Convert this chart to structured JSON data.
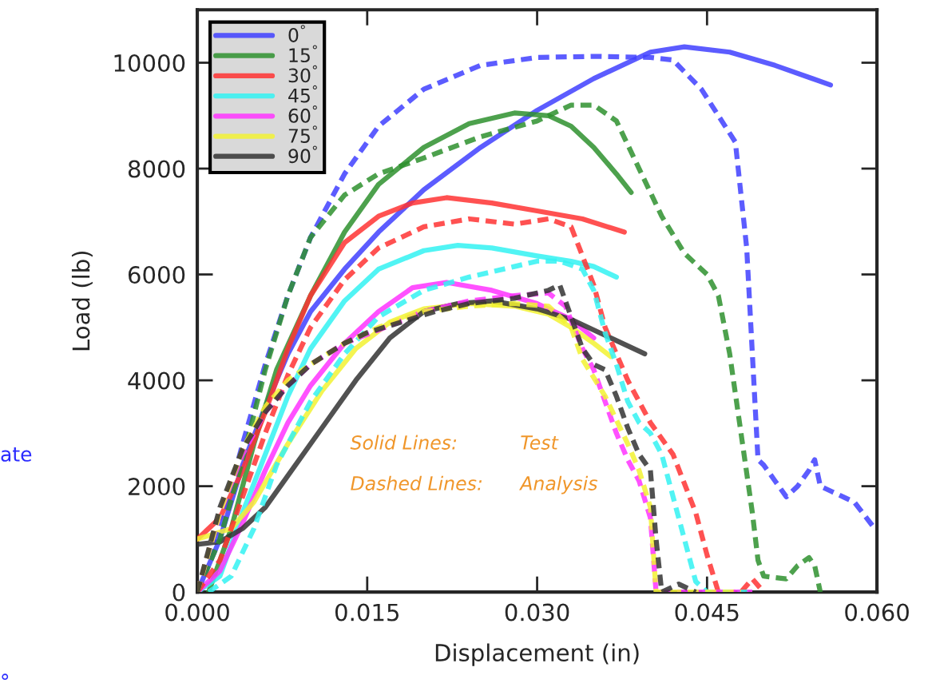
{
  "chart_data": {
    "type": "line",
    "xlabel": "Displacement (in)",
    "ylabel": "Load (lb)",
    "xlim": [
      0,
      0.06
    ],
    "xticks": [
      {
        "value": 0,
        "label": "0.000"
      },
      0.015,
      {
        "value": 0.03,
        "label": "0.030"
      },
      0.045,
      {
        "value": 0.06,
        "label": "0.060"
      }
    ],
    "ylim": [
      0,
      11000
    ],
    "yticks": [
      0,
      2000,
      4000,
      6000,
      8000,
      10000
    ],
    "grid": false,
    "legend": "top left",
    "annotations": [
      "Solid Lines:",
      "Test",
      "Dashed Lines:",
      "Analysis",
      "ate",
      "°"
    ],
    "series": [
      {
        "name": "0$^{°}$",
        "color": "#3f3fff",
        "line_style": "solid",
        "x": [
          0,
          0.002,
          0.004,
          0.006,
          0.008,
          0.01,
          0.013,
          0.016,
          0.02,
          0.025,
          0.03,
          0.035,
          0.04,
          0.043,
          0.047,
          0.051,
          0.0559
        ],
        "values": [
          0,
          1000,
          2400,
          3500,
          4500,
          5300,
          6100,
          6800,
          7600,
          8400,
          9100,
          9700,
          10200,
          10300,
          10200,
          9950,
          9580
        ]
      },
      {
        "name": "15$^{°}$",
        "color": "#2e912e",
        "line_style": "solid",
        "x": [
          0.001,
          0.003,
          0.005,
          0.007,
          0.01,
          0.013,
          0.016,
          0.02,
          0.024,
          0.028,
          0.031,
          0.033,
          0.035,
          0.037,
          0.0383
        ],
        "values": [
          0,
          1200,
          2800,
          4200,
          5600,
          6800,
          7700,
          8400,
          8850,
          9050,
          9000,
          8800,
          8400,
          7900,
          7550
        ]
      },
      {
        "name": "30$^{°}$",
        "color": "#ff3333",
        "line_style": "solid",
        "x": [
          0,
          0.002,
          0.004,
          0.006,
          0.008,
          0.01,
          0.013,
          0.016,
          0.019,
          0.022,
          0.026,
          0.03,
          0.034,
          0.0377
        ],
        "values": [
          1000,
          1400,
          2300,
          3400,
          4600,
          5600,
          6600,
          7100,
          7350,
          7450,
          7350,
          7200,
          7050,
          6800
        ]
      },
      {
        "name": "45$^{°}$",
        "color": "#33f2f2",
        "line_style": "solid",
        "x": [
          0,
          0.002,
          0.004,
          0.006,
          0.008,
          0.01,
          0.013,
          0.016,
          0.02,
          0.023,
          0.026,
          0.03,
          0.033,
          0.035,
          0.037
        ],
        "values": [
          0,
          300,
          1500,
          2600,
          3700,
          4600,
          5500,
          6100,
          6450,
          6550,
          6500,
          6350,
          6250,
          6150,
          5950
        ]
      },
      {
        "name": "60$^{°}$",
        "color": "#ff33ff",
        "line_style": "solid",
        "x": [
          0,
          0.002,
          0.004,
          0.006,
          0.008,
          0.01,
          0.013,
          0.016,
          0.019,
          0.022,
          0.026,
          0.03,
          0.033,
          0.035
        ],
        "values": [
          0,
          400,
          1300,
          2300,
          3200,
          3900,
          4700,
          5300,
          5750,
          5850,
          5700,
          5450,
          5150,
          4800
        ]
      },
      {
        "name": "75$^{°}$",
        "color": "#f2f233",
        "line_style": "solid",
        "x": [
          0,
          0.003,
          0.005,
          0.008,
          0.011,
          0.014,
          0.017,
          0.02,
          0.024,
          0.028,
          0.031,
          0.033,
          0.035,
          0.0365
        ],
        "values": [
          1000,
          1200,
          1700,
          2800,
          3800,
          4600,
          5100,
          5350,
          5450,
          5400,
          5250,
          5000,
          4700,
          4450
        ]
      },
      {
        "name": "90$^{°}$",
        "color": "#333333",
        "line_style": "solid",
        "x": [
          0,
          0.002,
          0.004,
          0.006,
          0.008,
          0.011,
          0.014,
          0.017,
          0.02,
          0.023,
          0.026,
          0.03,
          0.033,
          0.036,
          0.0395
        ],
        "values": [
          900,
          950,
          1200,
          1600,
          2200,
          3100,
          4000,
          4800,
          5300,
          5450,
          5500,
          5350,
          5150,
          4850,
          4500
        ]
      },
      {
        "color": "#3f3fff",
        "line_style": "dashed",
        "x": [
          0,
          0.002,
          0.004,
          0.006,
          0.008,
          0.01,
          0.013,
          0.016,
          0.02,
          0.025,
          0.03,
          0.035,
          0.04,
          0.042,
          0.0445,
          0.0475,
          0.0485,
          0.049,
          0.0495,
          0.05,
          0.051,
          0.052,
          0.053,
          0.054,
          0.0545,
          0.055,
          0.056,
          0.057,
          0.058,
          0.0598
        ],
        "values": [
          0,
          1200,
          2800,
          4300,
          5600,
          6700,
          7900,
          8800,
          9500,
          9950,
          10100,
          10120,
          10100,
          10050,
          9500,
          8500,
          6500,
          4500,
          2500,
          2400,
          2100,
          1800,
          2000,
          2300,
          2500,
          2000,
          1900,
          1800,
          1700,
          1200
        ]
      },
      {
        "color": "#2e912e",
        "line_style": "dashed",
        "x": [
          0,
          0.002,
          0.004,
          0.006,
          0.008,
          0.01,
          0.013,
          0.016,
          0.02,
          0.025,
          0.03,
          0.033,
          0.035,
          0.037,
          0.039,
          0.041,
          0.043,
          0.045,
          0.046,
          0.047,
          0.048,
          0.049,
          0.0495,
          0.05,
          0.052,
          0.053,
          0.054,
          0.0545,
          0.055
        ],
        "values": [
          0,
          1000,
          2500,
          4200,
          5600,
          6700,
          7500,
          7900,
          8200,
          8600,
          8900,
          9200,
          9200,
          8900,
          8000,
          7100,
          6400,
          6000,
          5600,
          4500,
          3000,
          1500,
          600,
          300,
          250,
          500,
          650,
          500,
          0
        ]
      },
      {
        "color": "#ff3333",
        "line_style": "dashed",
        "x": [
          0,
          0.002,
          0.004,
          0.006,
          0.008,
          0.01,
          0.013,
          0.016,
          0.02,
          0.024,
          0.028,
          0.031,
          0.033,
          0.035,
          0.036,
          0.038,
          0.04,
          0.042,
          0.044,
          0.045,
          0.046,
          0.048,
          0.049,
          0.05
        ],
        "values": [
          0,
          600,
          1800,
          3000,
          4100,
          5000,
          5900,
          6500,
          6900,
          7050,
          6950,
          7050,
          6900,
          5800,
          5000,
          4000,
          3200,
          2600,
          1500,
          700,
          0,
          0,
          250,
          0
        ]
      },
      {
        "color": "#33f2f2",
        "line_style": "dashed",
        "x": [
          0.001,
          0.003,
          0.005,
          0.007,
          0.01,
          0.013,
          0.016,
          0.02,
          0.024,
          0.028,
          0.03,
          0.032,
          0.034,
          0.035,
          0.036,
          0.037,
          0.038,
          0.039,
          0.04,
          0.041,
          0.042,
          0.043,
          0.044,
          0.045,
          0.049
        ],
        "values": [
          0,
          300,
          1200,
          2400,
          3600,
          4500,
          5200,
          5700,
          5950,
          6150,
          6250,
          6250,
          6100,
          5700,
          4900,
          4300,
          3600,
          3200,
          3000,
          2600,
          1800,
          1000,
          200,
          0,
          0
        ]
      },
      {
        "color": "#ff33ff",
        "line_style": "dashed",
        "x": [
          0,
          0.002,
          0.004,
          0.006,
          0.008,
          0.01,
          0.013,
          0.016,
          0.02,
          0.024,
          0.028,
          0.031,
          0.0325,
          0.034,
          0.035,
          0.036,
          0.037,
          0.038,
          0.039,
          0.04,
          0.0405,
          0.045,
          0.049
        ],
        "values": [
          0,
          1500,
          2600,
          3400,
          3900,
          4300,
          4700,
          4950,
          5300,
          5500,
          5600,
          5650,
          5400,
          4600,
          4200,
          3600,
          3000,
          2500,
          2100,
          1400,
          0,
          0,
          0
        ]
      },
      {
        "color": "#f2f233",
        "line_style": "dashed",
        "x": [
          0,
          0.002,
          0.004,
          0.006,
          0.008,
          0.01,
          0.013,
          0.016,
          0.02,
          0.024,
          0.028,
          0.031,
          0.033,
          0.034,
          0.036,
          0.038,
          0.039,
          0.04,
          0.0405,
          0.048
        ],
        "values": [
          0,
          1500,
          2700,
          3500,
          4000,
          4300,
          4700,
          5000,
          5300,
          5400,
          5450,
          5400,
          5000,
          4400,
          3700,
          2800,
          2300,
          1600,
          0,
          0
        ]
      },
      {
        "color": "#333333",
        "line_style": "dashed",
        "x": [
          0,
          0.002,
          0.004,
          0.006,
          0.008,
          0.01,
          0.013,
          0.015,
          0.018,
          0.021,
          0.024,
          0.028,
          0.031,
          0.032,
          0.033,
          0.034,
          0.035,
          0.036,
          0.037,
          0.038,
          0.039,
          0.04,
          0.0405,
          0.041,
          0.0425,
          0.044
        ],
        "values": [
          0,
          1600,
          2700,
          3400,
          3900,
          4300,
          4700,
          4900,
          5100,
          5300,
          5450,
          5550,
          5700,
          5800,
          5200,
          4600,
          4300,
          4200,
          3700,
          3100,
          2600,
          2300,
          1000,
          0,
          150,
          0
        ]
      }
    ]
  }
}
